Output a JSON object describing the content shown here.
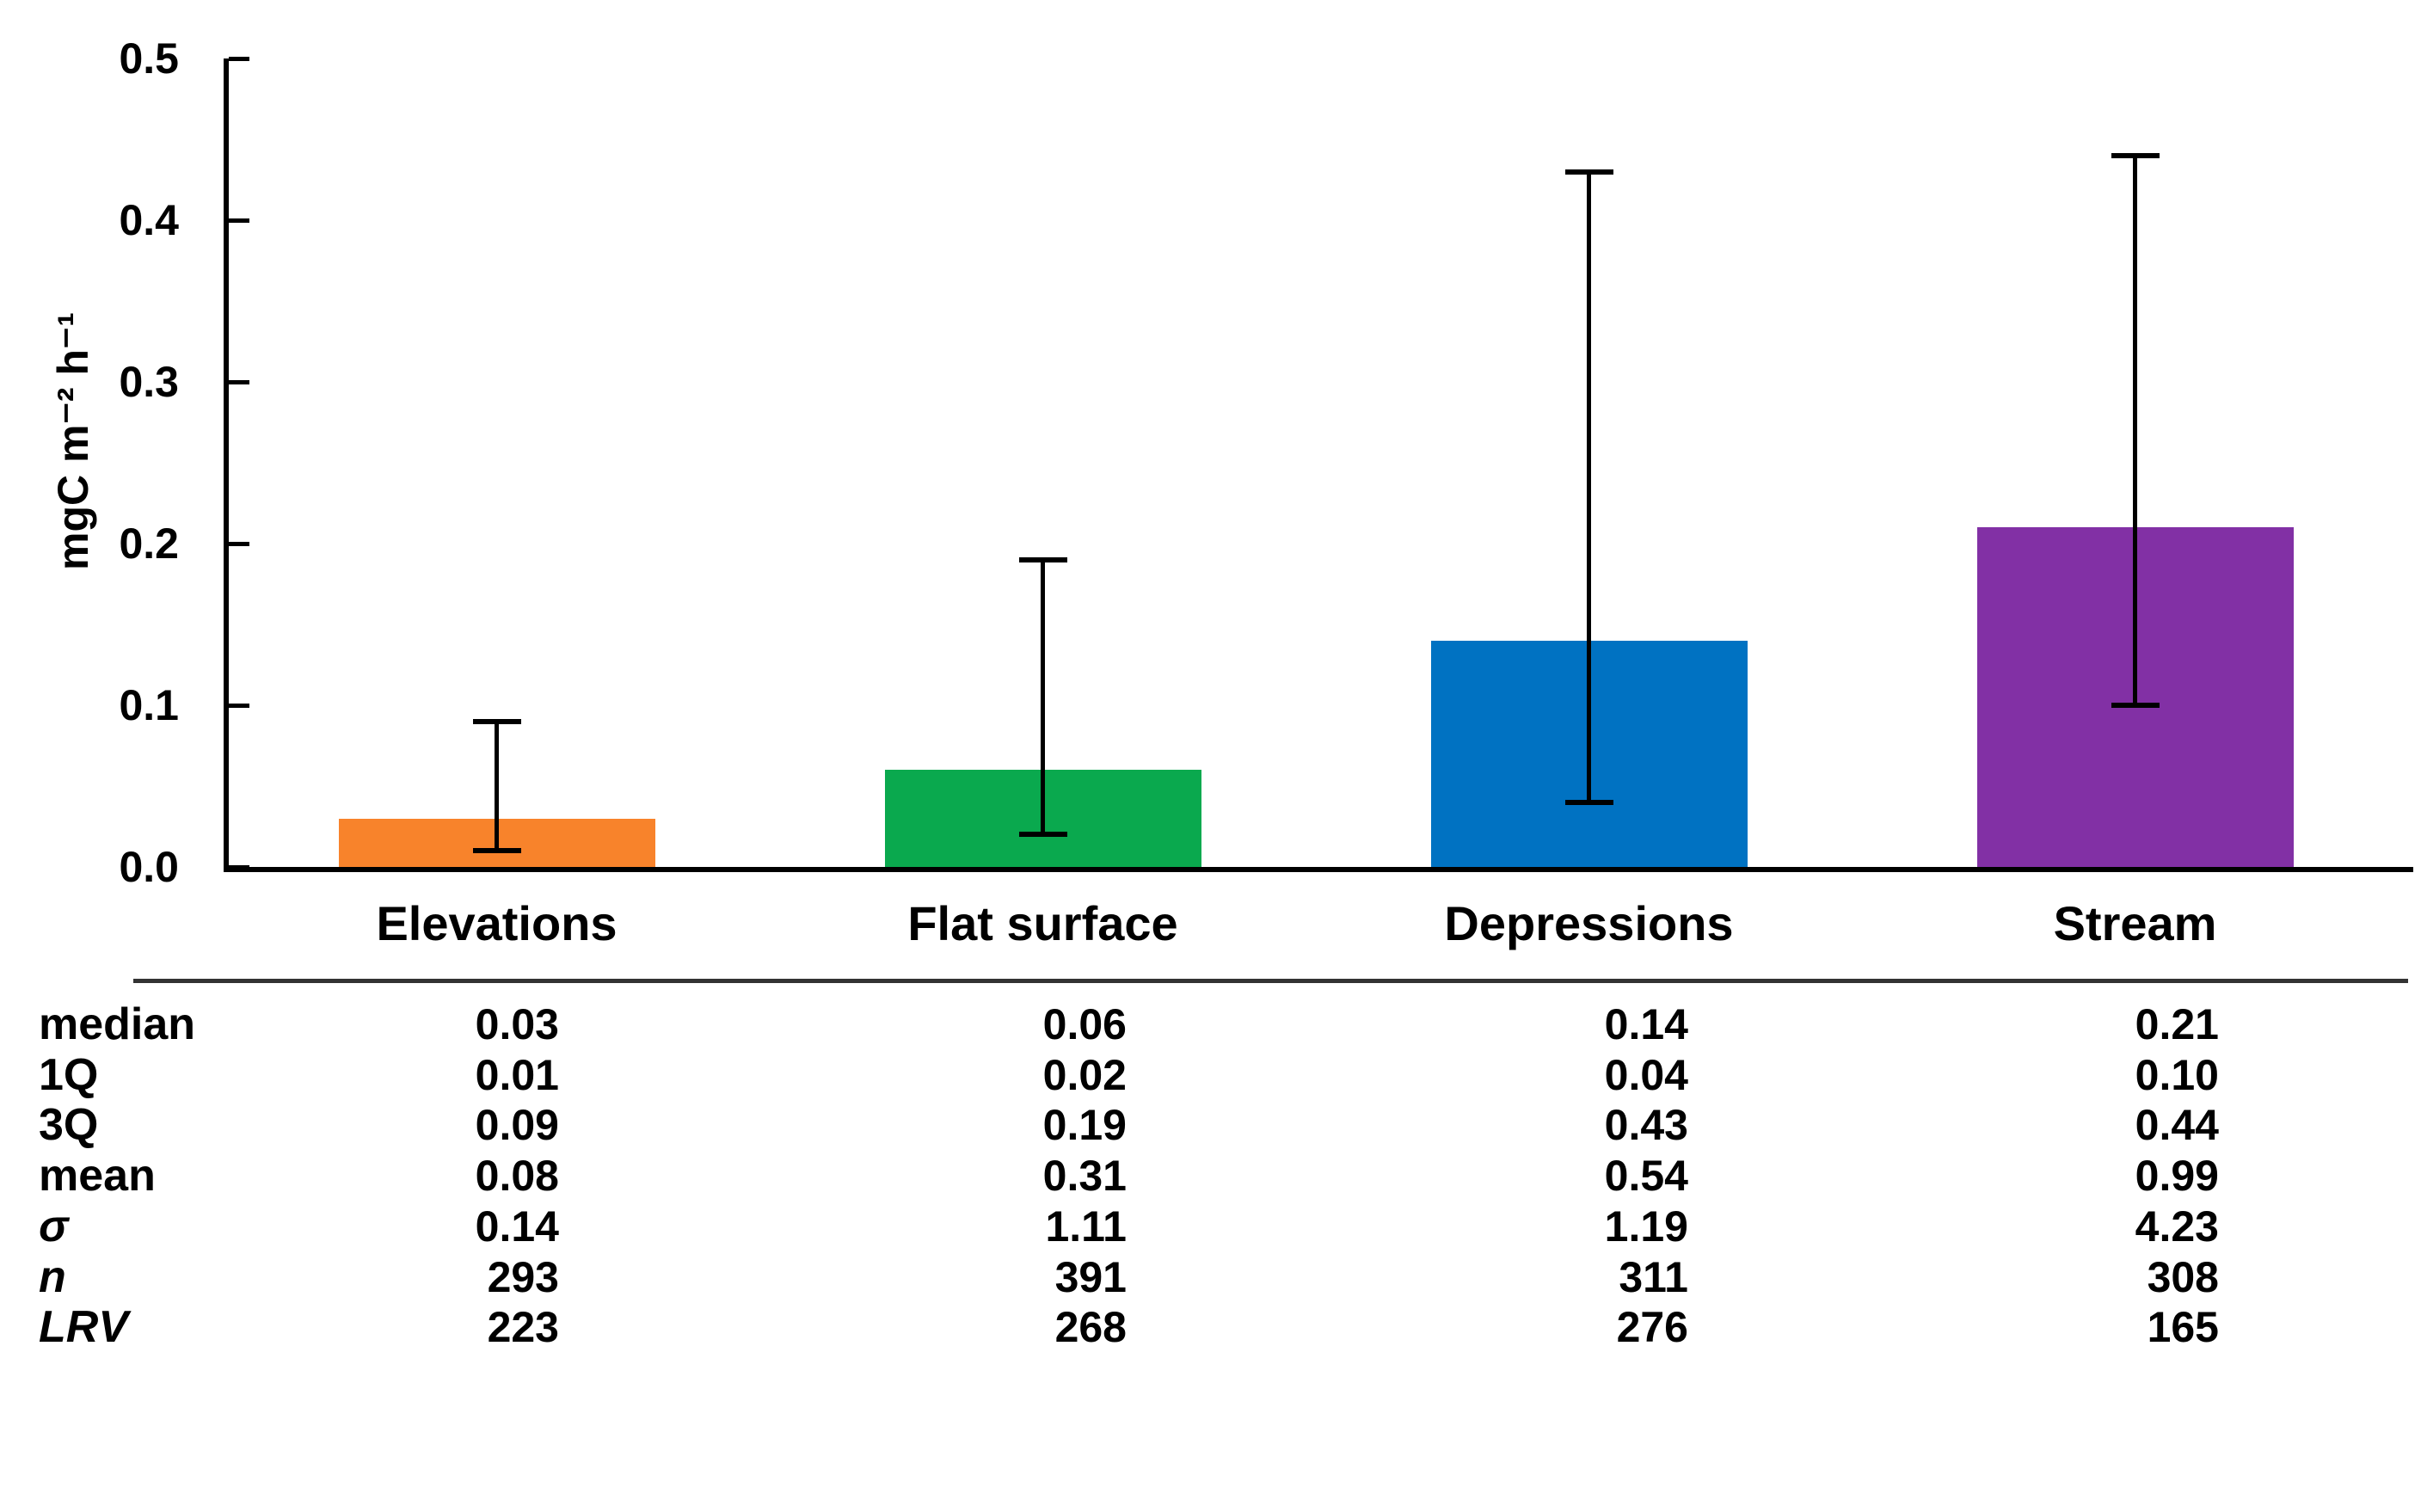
{
  "chart_data": {
    "type": "bar",
    "title": "",
    "ylabel": "mgC m⁻² h⁻¹",
    "xlabel": "",
    "ylim": [
      0,
      0.5
    ],
    "yticks": [
      "0.0",
      "0.1",
      "0.2",
      "0.3",
      "0.4",
      "0.5"
    ],
    "grid": false,
    "legend": "none",
    "categories": [
      "Elevations",
      "Flat surface",
      "Depressions",
      "Stream"
    ],
    "values": [
      0.03,
      0.06,
      0.14,
      0.21
    ],
    "whisker_low": [
      0.01,
      0.02,
      0.04,
      0.1
    ],
    "whisker_high": [
      0.09,
      0.19,
      0.43,
      0.44
    ],
    "bar_colors": [
      "#F8832B",
      "#0AA94E",
      "#0072C2",
      "#8230A5"
    ]
  },
  "table": {
    "rule_color": "#333333",
    "rows": [
      {
        "label": "median",
        "italic": false,
        "values": [
          "0.03",
          "0.06",
          "0.14",
          "0.21"
        ]
      },
      {
        "label": "1Q",
        "italic": false,
        "values": [
          "0.01",
          "0.02",
          "0.04",
          "0.10"
        ]
      },
      {
        "label": "3Q",
        "italic": false,
        "values": [
          "0.09",
          "0.19",
          "0.43",
          "0.44"
        ]
      },
      {
        "label": "mean",
        "italic": false,
        "values": [
          "0.08",
          "0.31",
          "0.54",
          "0.99"
        ]
      },
      {
        "label": "σ",
        "italic": true,
        "values": [
          "0.14",
          "1.11",
          "1.19",
          "4.23"
        ]
      },
      {
        "label": "n",
        "italic": true,
        "values": [
          "293",
          "391",
          "311",
          "308"
        ]
      },
      {
        "label": "LRV",
        "italic": true,
        "values": [
          "223",
          "268",
          "276",
          "165"
        ]
      }
    ]
  }
}
